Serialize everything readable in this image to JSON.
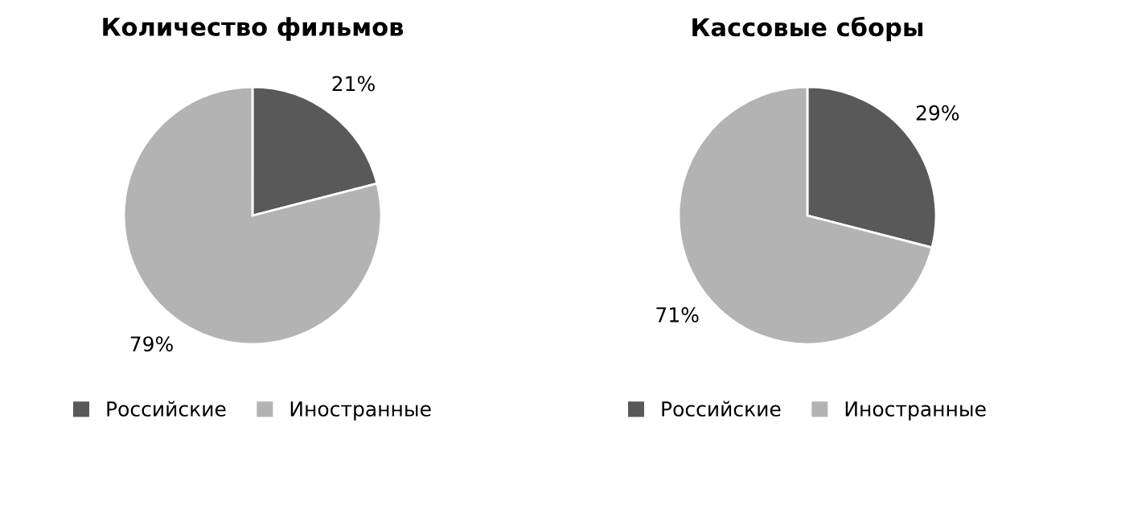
{
  "chart_data": [
    {
      "type": "pie",
      "title": "Количество фильмов",
      "categories": [
        "Российские",
        "Иностранные"
      ],
      "values": [
        21,
        79
      ],
      "colors": [
        "#595959",
        "#b3b3b3"
      ],
      "value_labels": [
        "21%",
        "79%"
      ],
      "legend": "bottom"
    },
    {
      "type": "pie",
      "title": "Кассовые сборы",
      "categories": [
        "Российские",
        "Иностранные"
      ],
      "values": [
        29,
        71
      ],
      "colors": [
        "#595959",
        "#b3b3b3"
      ],
      "value_labels": [
        "29%",
        "71%"
      ],
      "legend": "bottom"
    }
  ]
}
